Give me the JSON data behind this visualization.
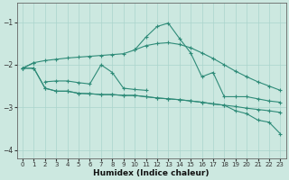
{
  "xlabel": "Humidex (Indice chaleur)",
  "x": [
    0,
    1,
    2,
    3,
    4,
    5,
    6,
    7,
    8,
    9,
    10,
    11,
    12,
    13,
    14,
    15,
    16,
    17,
    18,
    19,
    20,
    21,
    22,
    23
  ],
  "line_color": "#2e8b78",
  "bg_color": "#cce8e0",
  "grid_color": "#aad4cc",
  "ylim": [
    -4.2,
    -0.55
  ],
  "xlim": [
    -0.5,
    23.5
  ],
  "yticks": [
    -4,
    -3,
    -2,
    -1
  ],
  "xticks": [
    0,
    1,
    2,
    3,
    4,
    5,
    6,
    7,
    8,
    9,
    10,
    11,
    12,
    13,
    14,
    15,
    16,
    17,
    18,
    19,
    20,
    21,
    22,
    23
  ],
  "line_upper_smooth": [
    -2.08,
    -1.95,
    -1.9,
    -1.87,
    -1.84,
    -1.82,
    -1.8,
    -1.78,
    -1.76,
    -1.74,
    -1.65,
    -1.55,
    -1.5,
    -1.48,
    -1.52,
    -1.6,
    -1.72,
    -1.85,
    -2.0,
    -2.15,
    -2.28,
    -2.4,
    -2.5,
    -2.6
  ],
  "line_main": [
    -2.08,
    -1.95,
    null,
    null,
    null,
    null,
    null,
    null,
    null,
    null,
    -1.65,
    -1.35,
    -1.1,
    -1.02,
    -1.38,
    -1.72,
    -2.28,
    -2.18,
    -2.75,
    -2.75,
    -2.75,
    -2.8,
    -2.85,
    -2.88
  ],
  "line_zigzag": [
    null,
    null,
    -2.4,
    -2.38,
    -2.38,
    -2.42,
    -2.45,
    -2.0,
    -2.18,
    -2.55,
    -2.58,
    -2.6,
    null,
    null,
    null,
    null,
    null,
    null,
    null,
    null,
    null,
    null,
    null,
    null
  ],
  "line_lower_smooth": [
    -2.08,
    -2.08,
    -2.55,
    -2.62,
    -2.62,
    -2.67,
    -2.68,
    -2.7,
    -2.7,
    -2.72,
    -2.72,
    -2.75,
    -2.78,
    -2.8,
    -2.82,
    -2.85,
    -2.88,
    -2.92,
    -2.95,
    -2.98,
    -3.02,
    -3.05,
    -3.08,
    -3.12
  ],
  "line_lower": [
    -2.08,
    -2.08,
    -2.55,
    -2.62,
    -2.62,
    -2.67,
    -2.68,
    -2.7,
    -2.7,
    -2.72,
    -2.72,
    -2.75,
    -2.78,
    -2.8,
    -2.82,
    -2.85,
    -2.88,
    -2.92,
    -2.95,
    -3.08,
    -3.15,
    -3.3,
    -3.35,
    -3.62
  ]
}
